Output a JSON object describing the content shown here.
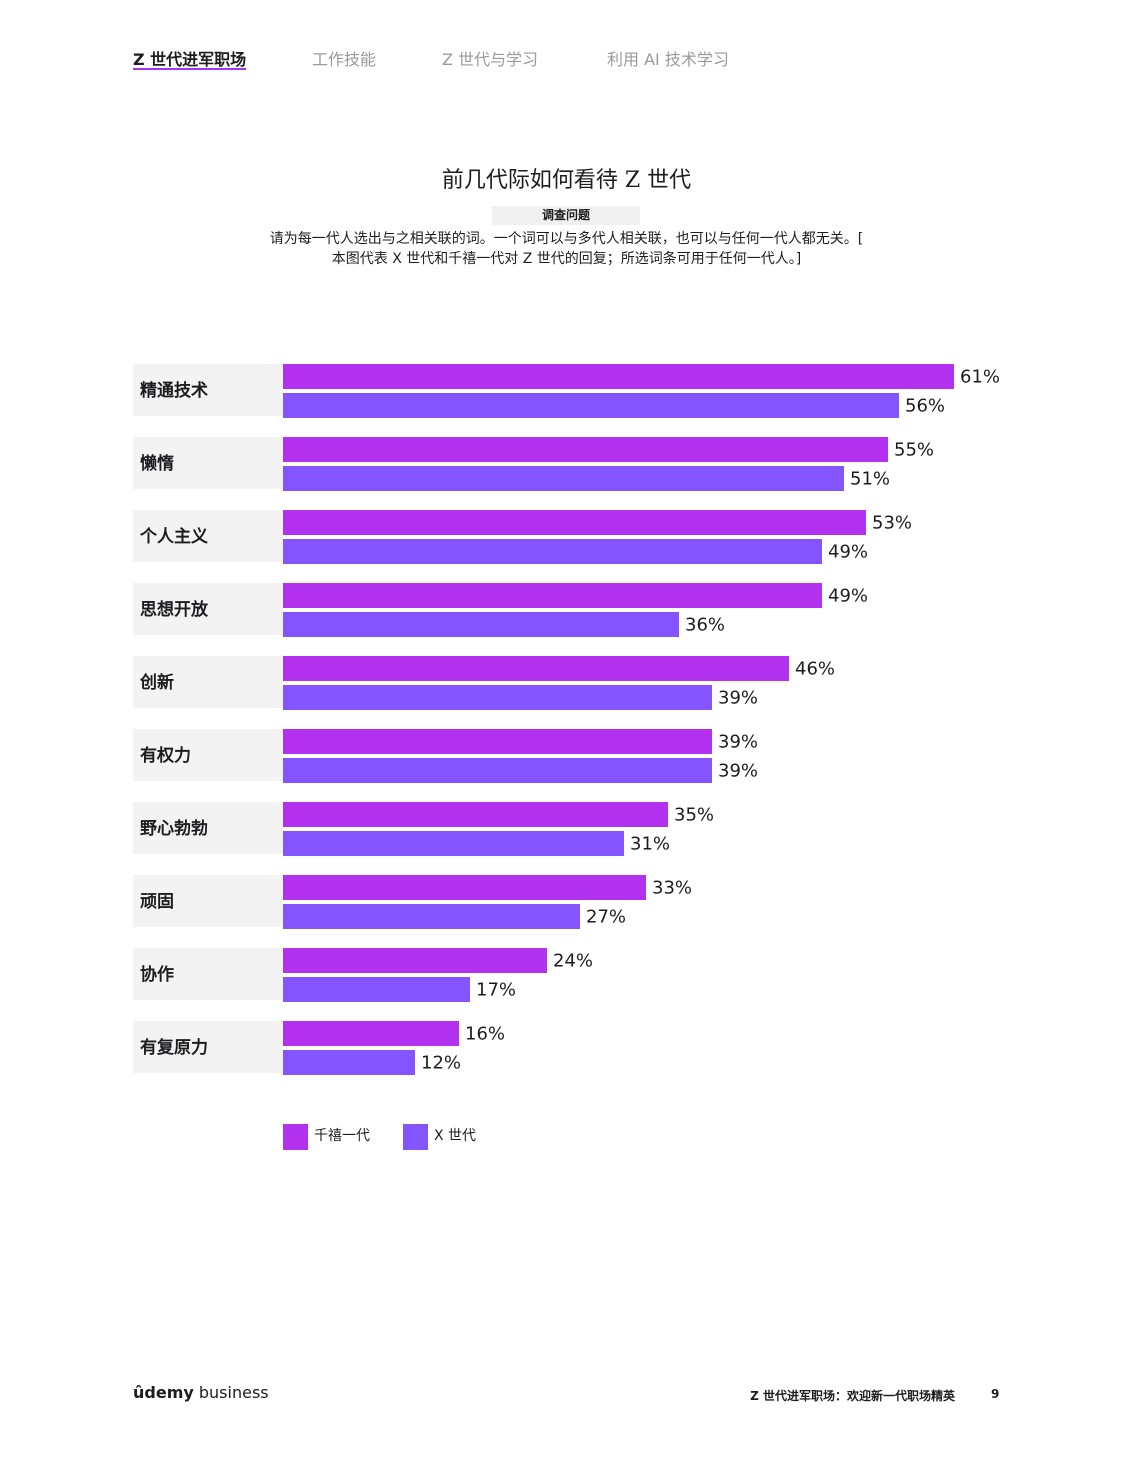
{
  "nav": {
    "tabs": [
      {
        "label": "Z 世代进军职场",
        "active": true
      },
      {
        "label": "工作技能",
        "active": false
      },
      {
        "label": "Z 世代与学习",
        "active": false
      },
      {
        "label": "利用 AI 技术学习",
        "active": false
      }
    ]
  },
  "header": {
    "title": "前几代际如何看待 Z 世代",
    "question_label": "调查问题",
    "question_line1": "请为每一代人选出与之相关联的词。一个词可以与多代人相关联，也可以与任何一代人都无关。[",
    "question_line2": "本图代表 X 世代和千禧一代对 Z 世代的回复；所选词条可用于任何一代人。]"
  },
  "chart_data": {
    "type": "bar",
    "orientation": "horizontal",
    "categories": [
      "精通技术",
      "懒惰",
      "个人主义",
      "思想开放",
      "创新",
      "有权力",
      "野心勃勃",
      "顽固",
      "协作",
      "有复原力"
    ],
    "series": [
      {
        "name": "千禧一代",
        "color": "#b332f0",
        "values": [
          61,
          55,
          53,
          49,
          46,
          39,
          35,
          33,
          24,
          16
        ]
      },
      {
        "name": "X 世代",
        "color": "#8454ff",
        "values": [
          56,
          51,
          49,
          36,
          39,
          39,
          31,
          27,
          17,
          12
        ]
      }
    ],
    "value_suffix": "%",
    "xlim": [
      0,
      61
    ],
    "grid": false,
    "legend_position": "bottom-left"
  },
  "footer": {
    "logo_brand": "ûdemy",
    "logo_suffix": " business",
    "doc_title": "Z 世代进军职场：欢迎新一代职场精英",
    "page_number": "9"
  }
}
